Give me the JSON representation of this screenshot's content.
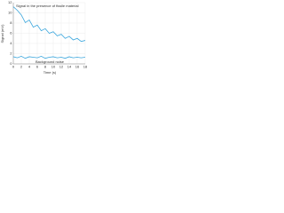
{
  "chart_data": {
    "type": "line",
    "x_label": "Time (s)",
    "y_label": "Signal (mV)",
    "x": [
      0,
      1,
      2,
      3,
      4,
      5,
      6,
      7,
      8,
      9,
      10,
      11,
      12,
      13,
      14,
      15,
      16,
      17,
      18
    ],
    "series": [
      {
        "name": "Signal in the presence of fissile material",
        "color": "#3aa6dd",
        "values": [
          11.2,
          10.5,
          9.6,
          8.1,
          8.6,
          7.2,
          7.6,
          6.5,
          6.9,
          6.0,
          6.3,
          5.5,
          5.8,
          5.0,
          5.4,
          4.7,
          5.0,
          4.4,
          4.6
        ]
      },
      {
        "name": "Background noise",
        "color": "#3aa6dd",
        "values": [
          1.4,
          1.2,
          1.5,
          1.1,
          1.4,
          1.3,
          1.2,
          1.5,
          1.1,
          1.3,
          1.4,
          1.2,
          1.3,
          1.1,
          1.4,
          1.2,
          1.3,
          1.2,
          1.3
        ]
      }
    ],
    "xlim": [
      0,
      18
    ],
    "xticks": [
      0,
      2,
      4,
      6,
      8,
      10,
      12,
      14,
      16,
      18
    ],
    "ylim": [
      0,
      12
    ],
    "yticks": [
      0,
      2,
      4,
      6,
      8,
      10,
      12
    ],
    "grid": true
  }
}
